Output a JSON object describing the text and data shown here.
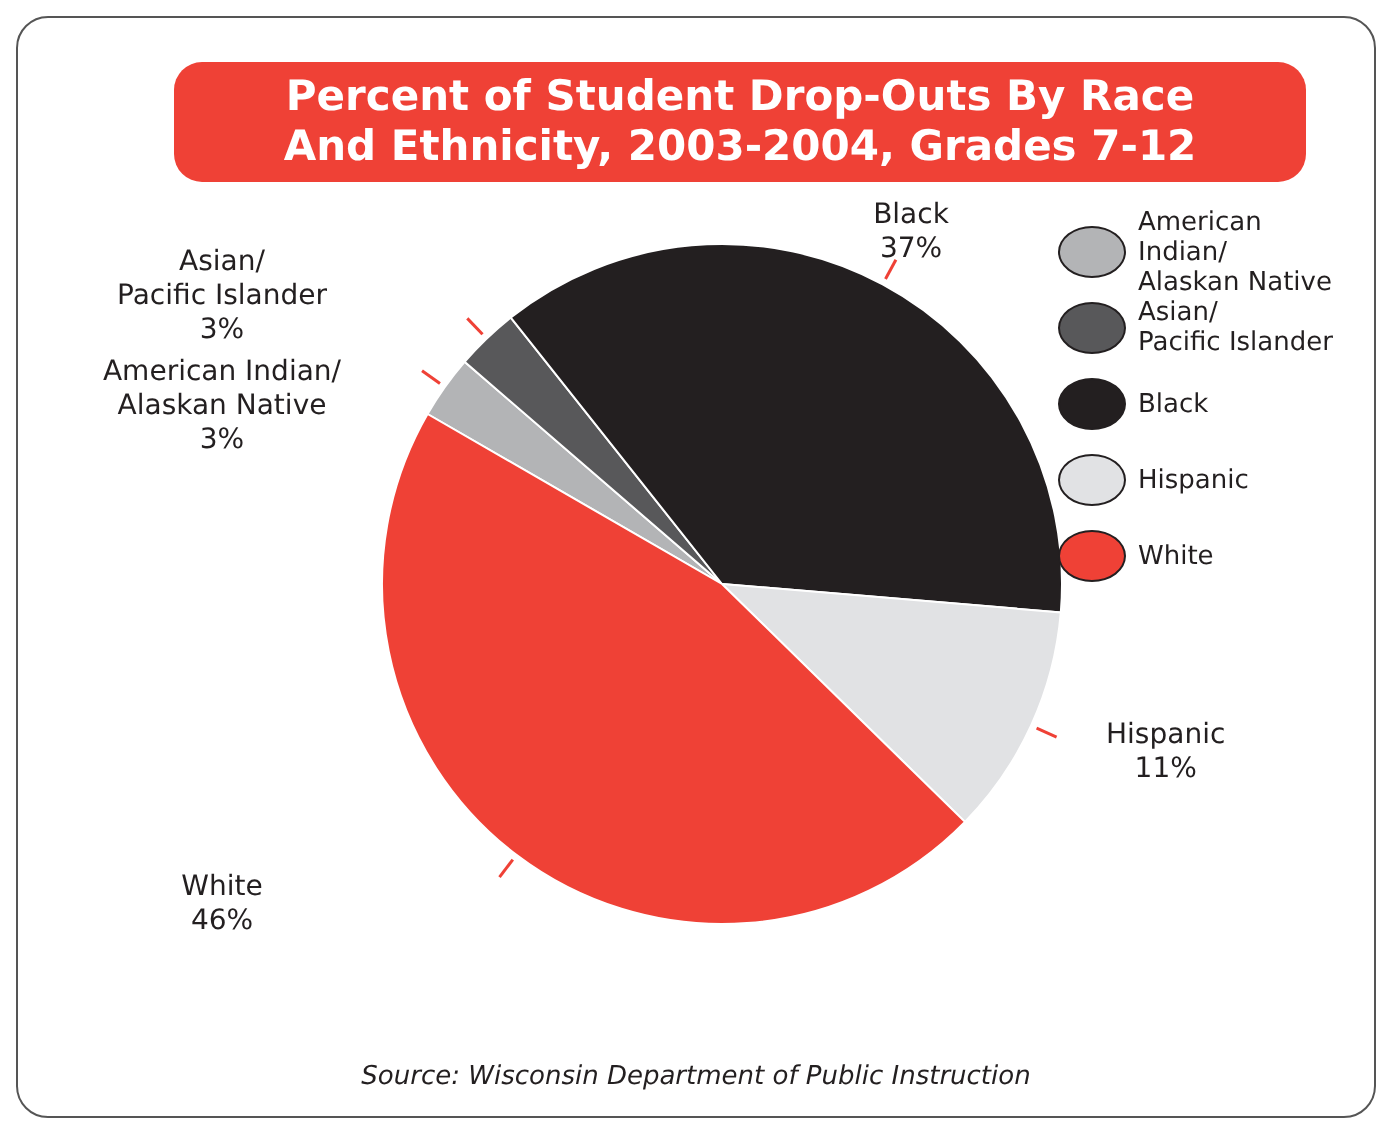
{
  "chart_data": {
    "type": "pie",
    "title": "Percent of Student Drop-Outs By Race And Ethnicity, 2003-2004, Grades 7-12",
    "categories": [
      "American Indian/Alaskan Native",
      "Asian/Pacific Islander",
      "Black",
      "Hispanic",
      "White"
    ],
    "values": [
      3,
      3,
      37,
      11,
      46
    ],
    "value_labels": [
      "3%",
      "3%",
      "37%",
      "11%",
      "46%"
    ],
    "colors": [
      "#b3b4b6",
      "#58585a",
      "#231f20",
      "#e1e2e4",
      "#ef4136"
    ],
    "legend": "right",
    "annotations": [
      "Source: Wisconsin Department of Public Instruction"
    ]
  }
}
